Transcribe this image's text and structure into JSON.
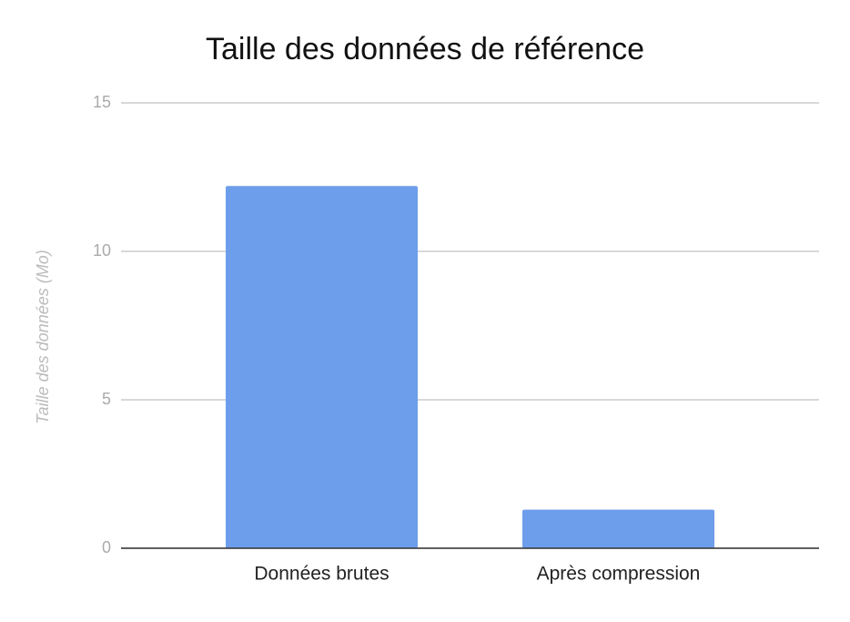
{
  "chart_data": {
    "type": "bar",
    "title": "Taille des données de référence",
    "y_label": "Taille des données (Mo)",
    "categories": [
      "Données brutes",
      "Après compression"
    ],
    "values": [
      12.2,
      1.3
    ],
    "color": "#6d9eeb",
    "ylim": [
      0,
      15
    ],
    "yticks": [
      0,
      5,
      10,
      15
    ],
    "grid": true
  }
}
